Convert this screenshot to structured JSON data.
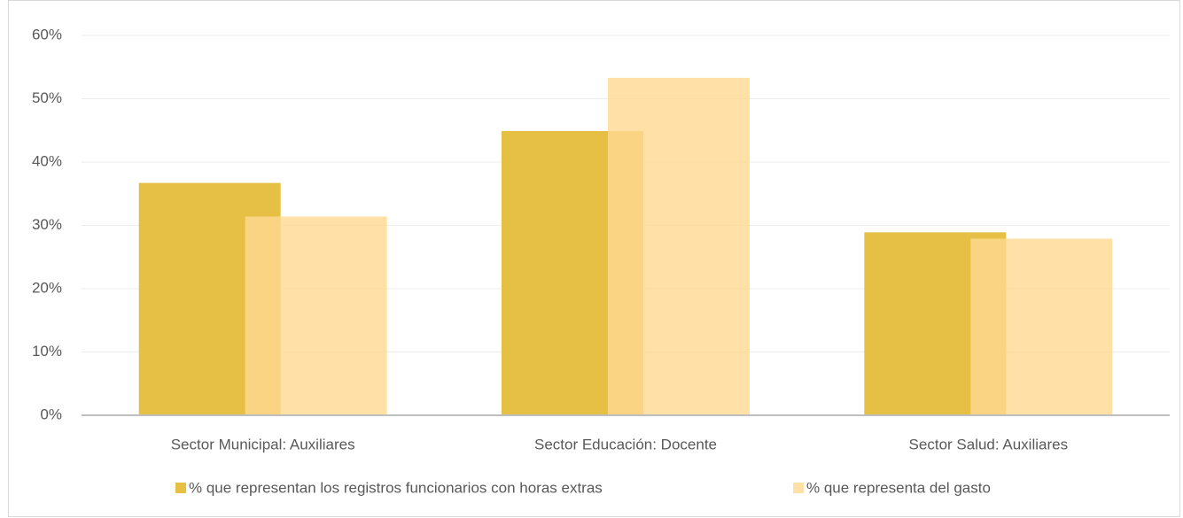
{
  "chart_data": {
    "type": "bar",
    "categories": [
      "Sector Municipal: Auxiliares",
      "Sector Educación: Docente",
      "Sector Salud: Auxiliares"
    ],
    "series": [
      {
        "name": "% que representan los registros funcionarios con horas extras",
        "color": "#e6bf45",
        "values": [
          36.7,
          44.9,
          28.9
        ]
      },
      {
        "name": "% que representa del gasto",
        "color": "#ffd991",
        "values": [
          31.4,
          53.3,
          27.9
        ]
      }
    ],
    "ylim": [
      0,
      60
    ],
    "yticks": [
      {
        "value": 0,
        "label": "0%"
      },
      {
        "value": 10,
        "label": "10%"
      },
      {
        "value": 20,
        "label": "20%"
      },
      {
        "value": 30,
        "label": "30%"
      },
      {
        "value": 40,
        "label": "40%"
      },
      {
        "value": 50,
        "label": "50%"
      },
      {
        "value": 60,
        "label": "60%"
      }
    ],
    "grid": true,
    "legend": "bottom"
  }
}
